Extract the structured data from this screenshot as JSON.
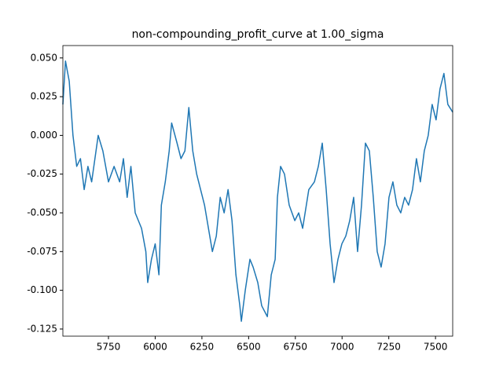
{
  "chart_data": {
    "type": "line",
    "title": "non-compounding_profit_curve at 1.00_sigma",
    "x": [
      5506,
      5520,
      5540,
      5560,
      5580,
      5600,
      5620,
      5640,
      5660,
      5695,
      5720,
      5750,
      5780,
      5810,
      5830,
      5850,
      5870,
      5893,
      5927,
      5950,
      5960,
      5980,
      6000,
      6020,
      6033,
      6054,
      6075,
      6088,
      6117,
      6138,
      6159,
      6180,
      6201,
      6222,
      6243,
      6264,
      6285,
      6306,
      6327,
      6348,
      6369,
      6390,
      6411,
      6432,
      6453,
      6461,
      6482,
      6507,
      6524,
      6549,
      6570,
      6600,
      6621,
      6642,
      6654,
      6671,
      6692,
      6717,
      6747,
      6768,
      6789,
      6822,
      6852,
      6873,
      6894,
      6915,
      6936,
      6957,
      6978,
      6999,
      7020,
      7041,
      7062,
      7083,
      7104,
      7125,
      7146,
      7167,
      7188,
      7209,
      7230,
      7251,
      7272,
      7293,
      7314,
      7335,
      7356,
      7377,
      7398,
      7419,
      7440,
      7461,
      7482,
      7503,
      7524,
      7545,
      7566,
      7592
    ],
    "series": [
      {
        "color": "#1f77b4",
        "values": [
          0.02,
          0.048,
          0.035,
          0.0,
          -0.02,
          -0.015,
          -0.035,
          -0.02,
          -0.03,
          0.0,
          -0.01,
          -0.03,
          -0.02,
          -0.03,
          -0.015,
          -0.04,
          -0.02,
          -0.05,
          -0.06,
          -0.075,
          -0.095,
          -0.08,
          -0.07,
          -0.09,
          -0.045,
          -0.03,
          -0.01,
          0.008,
          -0.005,
          -0.015,
          -0.01,
          0.018,
          -0.01,
          -0.025,
          -0.035,
          -0.045,
          -0.06,
          -0.075,
          -0.065,
          -0.04,
          -0.05,
          -0.035,
          -0.055,
          -0.09,
          -0.11,
          -0.12,
          -0.1,
          -0.08,
          -0.085,
          -0.095,
          -0.11,
          -0.117,
          -0.09,
          -0.08,
          -0.04,
          -0.02,
          -0.025,
          -0.045,
          -0.055,
          -0.05,
          -0.06,
          -0.035,
          -0.03,
          -0.02,
          -0.005,
          -0.035,
          -0.07,
          -0.095,
          -0.08,
          -0.07,
          -0.065,
          -0.055,
          -0.04,
          -0.075,
          -0.045,
          -0.005,
          -0.01,
          -0.04,
          -0.075,
          -0.085,
          -0.07,
          -0.04,
          -0.03,
          -0.045,
          -0.05,
          -0.04,
          -0.045,
          -0.035,
          -0.015,
          -0.03,
          -0.01,
          0.0,
          0.02,
          0.01,
          0.03,
          0.04,
          0.02,
          0.015
        ]
      }
    ],
    "xlim": [
      5506,
      7592
    ],
    "xticks": [
      5750,
      6000,
      6250,
      6500,
      6750,
      7000,
      7250,
      7500
    ],
    "ylim": [
      -0.1296,
      0.058
    ],
    "yticks": [
      {
        "value": -0.125,
        "label": "-0.125"
      },
      {
        "value": -0.1,
        "label": "-0.100"
      },
      {
        "value": -0.075,
        "label": "-0.075"
      },
      {
        "value": -0.05,
        "label": "-0.050"
      },
      {
        "value": -0.025,
        "label": "-0.025"
      },
      {
        "value": 0,
        "label": "0.000"
      },
      {
        "value": 0.025,
        "label": "0.025"
      },
      {
        "value": 0.05,
        "label": "0.050"
      }
    ]
  }
}
